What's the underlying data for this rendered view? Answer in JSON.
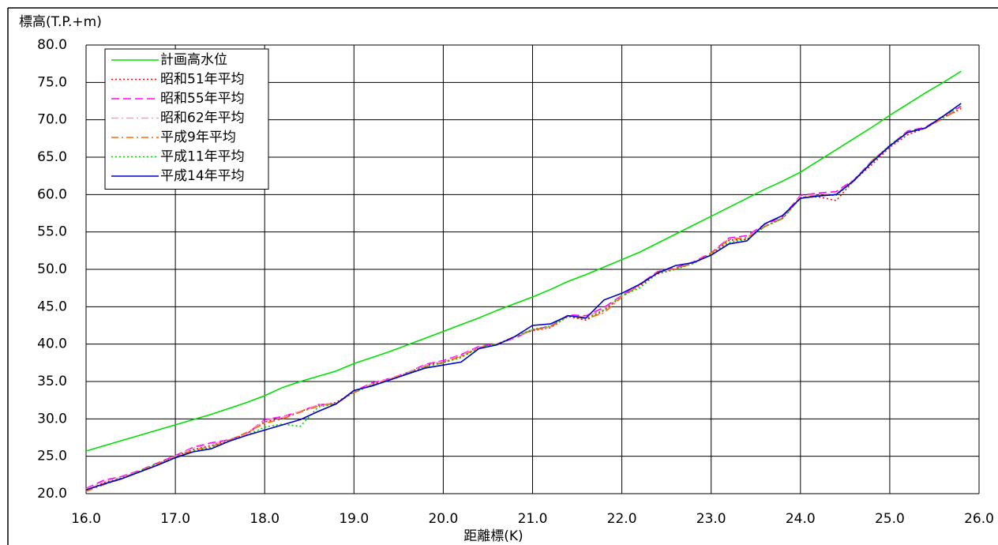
{
  "chart_data": {
    "type": "line",
    "ylabel": "標高(T.P.+m)",
    "xlabel": "距離標(K)",
    "x": [
      16.0,
      16.2,
      16.4,
      16.6,
      16.8,
      17.0,
      17.2,
      17.4,
      17.6,
      17.8,
      18.0,
      18.2,
      18.4,
      18.6,
      18.8,
      19.0,
      19.2,
      19.4,
      19.6,
      19.8,
      20.0,
      20.2,
      20.4,
      20.6,
      20.8,
      21.0,
      21.2,
      21.4,
      21.6,
      21.8,
      22.0,
      22.2,
      22.4,
      22.6,
      22.8,
      23.0,
      23.2,
      23.4,
      23.6,
      23.8,
      24.0,
      24.2,
      24.4,
      24.6,
      24.8,
      25.0,
      25.2,
      25.4,
      25.6,
      25.8
    ],
    "series": [
      {
        "name": "計画高水位",
        "color": "#00e000",
        "style": "solid",
        "values": [
          25.7,
          26.4,
          27.1,
          27.8,
          28.5,
          29.2,
          29.9,
          30.6,
          31.4,
          32.2,
          33.1,
          34.2,
          35.0,
          35.7,
          36.4,
          37.4,
          38.2,
          39.0,
          39.9,
          40.8,
          41.7,
          42.6,
          43.5,
          44.5,
          45.4,
          46.3,
          47.3,
          48.4,
          49.3,
          50.3,
          51.3,
          52.3,
          53.5,
          54.7,
          55.9,
          57.1,
          58.3,
          59.5,
          60.7,
          61.8,
          63.0,
          64.5,
          66.0,
          67.5,
          69.0,
          70.6,
          72.1,
          73.6,
          75.0,
          76.5
        ]
      },
      {
        "name": "昭和51年平均",
        "color": "#ff0000",
        "style": "dotted",
        "values": [
          20.4,
          21.5,
          22.1,
          23.0,
          24.0,
          25.0,
          25.9,
          26.4,
          27.2,
          28.0,
          29.6,
          30.1,
          31.0,
          31.8,
          32.2,
          33.6,
          34.6,
          35.3,
          36.1,
          37.2,
          37.6,
          38.3,
          39.5,
          40.0,
          41.0,
          41.8,
          42.2,
          43.7,
          43.2,
          44.5,
          46.4,
          47.8,
          49.4,
          50.0,
          50.8,
          52.0,
          53.9,
          54.0,
          55.8,
          56.8,
          59.6,
          59.7,
          59.2,
          61.9,
          64.0,
          66.3,
          68.0,
          68.9,
          70.3,
          71.5
        ]
      },
      {
        "name": "昭和55年平均",
        "color": "#ff00ff",
        "style": "dashed",
        "values": [
          20.7,
          21.8,
          22.3,
          23.1,
          24.1,
          25.1,
          26.2,
          26.8,
          27.2,
          28.0,
          29.9,
          30.3,
          31.0,
          31.9,
          32.0,
          33.7,
          34.8,
          35.4,
          36.2,
          37.3,
          37.8,
          38.6,
          39.7,
          40.0,
          40.8,
          41.9,
          42.4,
          43.9,
          43.8,
          44.9,
          46.5,
          48.0,
          49.7,
          50.2,
          51.0,
          52.2,
          54.2,
          54.5,
          56.0,
          57.0,
          59.9,
          60.2,
          60.4,
          62.0,
          64.5,
          66.5,
          68.5,
          69.0,
          70.5,
          71.8
        ]
      },
      {
        "name": "昭和62年平均",
        "color": "#ff99cc",
        "style": "dashdot",
        "values": [
          20.6,
          21.6,
          22.2,
          23.0,
          24.0,
          25.0,
          26.1,
          26.6,
          27.2,
          28.0,
          29.8,
          30.2,
          31.0,
          31.9,
          32.1,
          33.6,
          34.7,
          35.4,
          36.2,
          37.2,
          37.7,
          38.5,
          39.6,
          40.0,
          40.9,
          41.9,
          42.3,
          43.8,
          43.6,
          44.7,
          46.4,
          47.9,
          49.6,
          50.1,
          50.9,
          52.1,
          54.1,
          54.3,
          55.9,
          56.9,
          59.8,
          60.0,
          60.1,
          62.0,
          64.4,
          66.4,
          68.3,
          68.9,
          70.4,
          71.7
        ]
      },
      {
        "name": "平成9年平均",
        "color": "#ff6600",
        "style": "dashdot",
        "values": [
          20.3,
          21.2,
          22.0,
          23.0,
          24.0,
          24.9,
          25.8,
          26.3,
          27.1,
          28.2,
          29.4,
          30.0,
          30.9,
          31.7,
          32.1,
          33.5,
          34.5,
          35.3,
          36.1,
          37.0,
          37.5,
          38.4,
          39.5,
          40.0,
          41.0,
          41.9,
          42.3,
          43.8,
          43.4,
          44.2,
          46.3,
          47.9,
          49.6,
          50.1,
          50.8,
          52.2,
          54.0,
          54.2,
          55.7,
          56.8,
          59.6,
          59.9,
          60.0,
          61.8,
          64.5,
          66.5,
          68.3,
          68.9,
          70.2,
          71.6
        ]
      },
      {
        "name": "平成11年平均",
        "color": "#00cc00",
        "style": "dotted",
        "values": [
          20.5,
          21.3,
          22.1,
          23.0,
          24.0,
          24.9,
          25.7,
          26.2,
          27.1,
          27.8,
          28.9,
          29.3,
          29.0,
          31.6,
          32.0,
          33.6,
          34.5,
          35.2,
          36.1,
          37.0,
          37.5,
          38.2,
          39.5,
          40.0,
          41.0,
          42.0,
          42.4,
          43.8,
          43.4,
          44.6,
          46.5,
          47.5,
          49.5,
          50.0,
          50.8,
          52.0,
          53.6,
          54.0,
          55.7,
          56.8,
          59.5,
          59.9,
          59.9,
          61.8,
          64.5,
          66.6,
          68.4,
          68.9,
          70.4,
          71.9
        ]
      },
      {
        "name": "平成14年平均",
        "color": "#0000cc",
        "style": "solid",
        "values": [
          20.5,
          21.3,
          22.0,
          22.9,
          23.8,
          24.8,
          25.6,
          26.0,
          27.0,
          27.8,
          28.5,
          29.2,
          29.9,
          31.0,
          32.0,
          33.8,
          34.4,
          35.2,
          36.0,
          36.8,
          37.2,
          37.6,
          39.4,
          39.9,
          41.0,
          42.5,
          42.7,
          43.8,
          43.5,
          45.9,
          46.8,
          48.0,
          49.5,
          50.5,
          50.9,
          51.9,
          53.4,
          53.8,
          56.1,
          57.2,
          59.5,
          59.8,
          60.0,
          61.9,
          64.3,
          66.5,
          68.3,
          68.9,
          70.5,
          72.2
        ]
      }
    ],
    "xlim": [
      16,
      26
    ],
    "ylim": [
      20,
      80
    ],
    "xticks": [
      {
        "value": 16,
        "label": "16.0"
      },
      {
        "value": 17,
        "label": "17.0"
      },
      {
        "value": 18,
        "label": "18.0"
      },
      {
        "value": 19,
        "label": "19.0"
      },
      {
        "value": 20,
        "label": "20.0"
      },
      {
        "value": 21,
        "label": "21.0"
      },
      {
        "value": 22,
        "label": "22.0"
      },
      {
        "value": 23,
        "label": "23.0"
      },
      {
        "value": 24,
        "label": "24.0"
      },
      {
        "value": 25,
        "label": "25.0"
      },
      {
        "value": 26,
        "label": "26.0"
      }
    ],
    "yticks": [
      {
        "value": 20,
        "label": "20.0"
      },
      {
        "value": 25,
        "label": "25.0"
      },
      {
        "value": 30,
        "label": "30.0"
      },
      {
        "value": 35,
        "label": "35.0"
      },
      {
        "value": 40,
        "label": "40.0"
      },
      {
        "value": 45,
        "label": "45.0"
      },
      {
        "value": 50,
        "label": "50.0"
      },
      {
        "value": 55,
        "label": "55.0"
      },
      {
        "value": 60,
        "label": "60.0"
      },
      {
        "value": 65,
        "label": "65.0"
      },
      {
        "value": 70,
        "label": "70.0"
      },
      {
        "value": 75,
        "label": "75.0"
      },
      {
        "value": 80,
        "label": "80.0"
      }
    ],
    "grid": true,
    "legend": "upper left"
  }
}
